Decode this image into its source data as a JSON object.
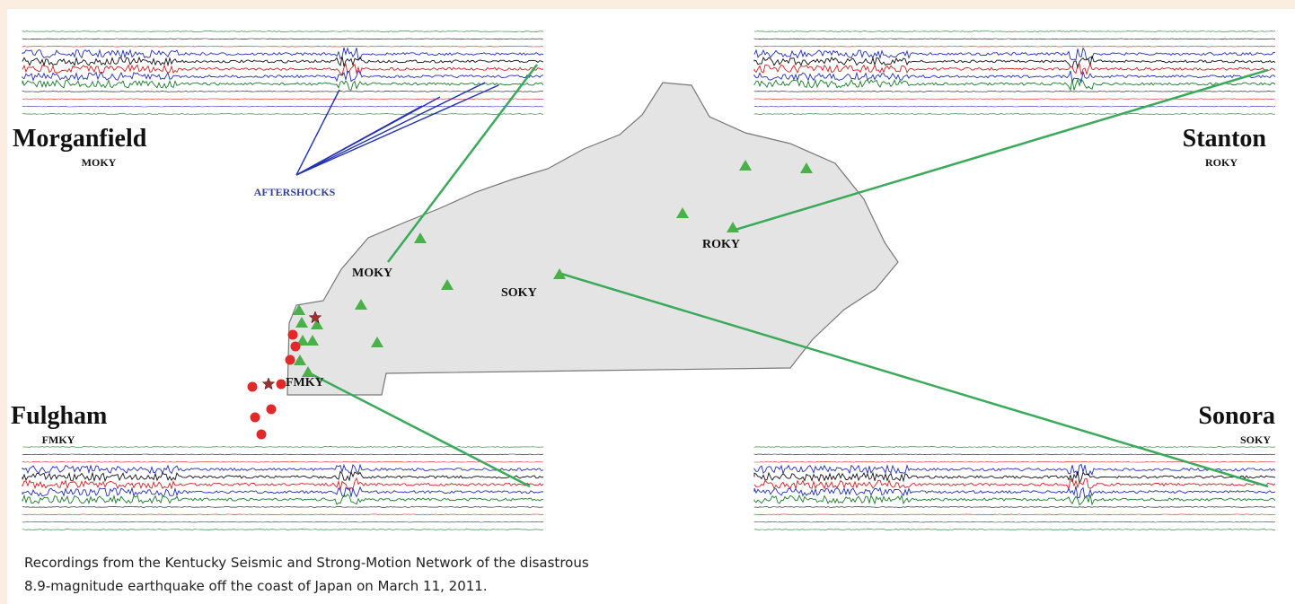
{
  "stations": [
    {
      "name": "Morganfield",
      "code": "MOKY"
    },
    {
      "name": "Stanton",
      "code": "ROKY"
    },
    {
      "name": "Fulgham",
      "code": "FMKY"
    },
    {
      "name": "Sonora",
      "code": "SOKY"
    }
  ],
  "annotation": "AFTERSHOCKS",
  "map_labels": [
    "MOKY",
    "SOKY",
    "ROKY",
    "FMKY"
  ],
  "caption": [
    "Recordings from the Kentucky Seismic and Strong-Motion Network of the disastrous",
    "8.9-magnitude earthquake off the coast of Japan on March 11, 2011."
  ]
}
